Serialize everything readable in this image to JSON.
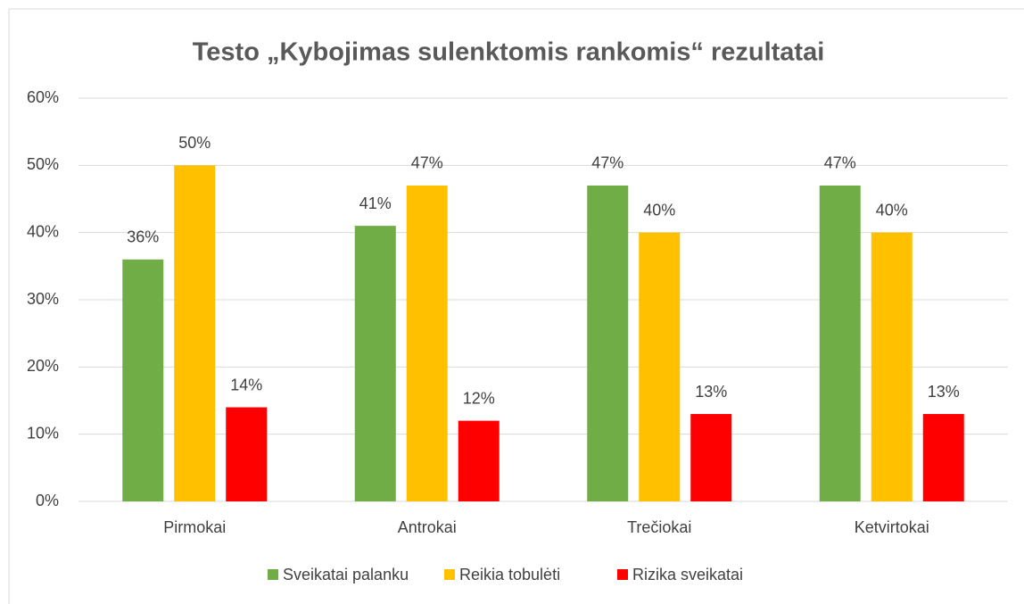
{
  "chart_data": {
    "type": "bar",
    "title": "Testo „Kybojimas sulenktomis rankomis“ rezultatai",
    "categories": [
      "Pirmokai",
      "Antrokai",
      "Trečiokai",
      "Ketvirtokai"
    ],
    "series": [
      {
        "name": "Sveikatai palanku",
        "color": "#70ad47",
        "values": [
          36,
          41,
          47,
          47
        ],
        "value_labels": [
          "36%",
          "41%",
          "47%",
          "47%"
        ]
      },
      {
        "name": "Reikia tobulėti",
        "color": "#ffc000",
        "values": [
          50,
          47,
          40,
          40
        ],
        "value_labels": [
          "50%",
          "47%",
          "40%",
          "40%"
        ]
      },
      {
        "name": "Rizika sveikatai",
        "color": "#ff0000",
        "values": [
          14,
          12,
          13,
          13
        ],
        "value_labels": [
          "14%",
          "12%",
          "13%",
          "13%"
        ]
      }
    ],
    "ylim": [
      0,
      60
    ],
    "yticks": [
      {
        "value": 0,
        "label": "0%"
      },
      {
        "value": 10,
        "label": "10%"
      },
      {
        "value": 20,
        "label": "20%"
      },
      {
        "value": 30,
        "label": "30%"
      },
      {
        "value": 40,
        "label": "40%"
      },
      {
        "value": 50,
        "label": "50%"
      },
      {
        "value": 60,
        "label": "60%"
      }
    ],
    "grid": true,
    "legend": "bottom"
  }
}
